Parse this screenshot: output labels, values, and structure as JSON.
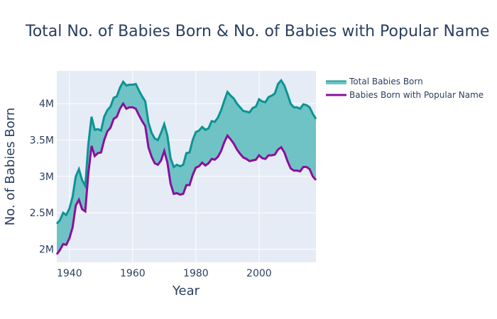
{
  "chart_data": {
    "type": "area",
    "title": "Total No. of Babies Born & No. of Babies with Popular Name",
    "xlabel": "Year",
    "ylabel": "No. of Babies Born",
    "xlim": [
      1936,
      2018
    ],
    "ylim": [
      1820000,
      4450000
    ],
    "x_ticks": [
      1940,
      1960,
      1980,
      2000
    ],
    "x_tick_labels": [
      "1940",
      "1960",
      "1980",
      "2000"
    ],
    "y_ticks": [
      2000000,
      2500000,
      3000000,
      3500000,
      4000000
    ],
    "y_tick_labels": [
      "2M",
      "2.5M",
      "3M",
      "3.5M",
      "4M"
    ],
    "grid": true,
    "legend_position": "top-right",
    "colors": {
      "plot_bg": "#e5ecf6",
      "grid": "#ffffff",
      "total_line": "#0b9494",
      "fill": "#6fc3c5",
      "popular_line": "#8b0f9c"
    },
    "x": [
      1936,
      1937,
      1938,
      1939,
      1940,
      1941,
      1942,
      1943,
      1944,
      1945,
      1946,
      1947,
      1948,
      1949,
      1950,
      1951,
      1952,
      1953,
      1954,
      1955,
      1956,
      1957,
      1958,
      1959,
      1960,
      1961,
      1962,
      1963,
      1964,
      1965,
      1966,
      1967,
      1968,
      1969,
      1970,
      1971,
      1972,
      1973,
      1974,
      1975,
      1976,
      1977,
      1978,
      1979,
      1980,
      1981,
      1982,
      1983,
      1984,
      1985,
      1986,
      1987,
      1988,
      1989,
      1990,
      1991,
      1992,
      1993,
      1994,
      1995,
      1996,
      1997,
      1998,
      1999,
      2000,
      2001,
      2002,
      2003,
      2004,
      2005,
      2006,
      2007,
      2008,
      2009,
      2010,
      2011,
      2012,
      2013,
      2014,
      2015,
      2016,
      2017,
      2018
    ],
    "series": [
      {
        "name": "Total Babies Born",
        "values": [
          2350000,
          2400000,
          2500000,
          2470000,
          2560000,
          2720000,
          3000000,
          3100000,
          2950000,
          2870000,
          3450000,
          3820000,
          3640000,
          3650000,
          3630000,
          3820000,
          3910000,
          3960000,
          4080000,
          4100000,
          4220000,
          4300000,
          4250000,
          4260000,
          4260000,
          4270000,
          4180000,
          4100000,
          4030000,
          3740000,
          3600000,
          3520000,
          3500000,
          3600000,
          3720000,
          3560000,
          3250000,
          3130000,
          3160000,
          3140000,
          3160000,
          3320000,
          3330000,
          3500000,
          3610000,
          3630000,
          3680000,
          3640000,
          3660000,
          3760000,
          3750000,
          3810000,
          3910000,
          4040000,
          4160000,
          4110000,
          4070000,
          4000000,
          3950000,
          3900000,
          3890000,
          3880000,
          3940000,
          3960000,
          4060000,
          4030000,
          4020000,
          4090000,
          4110000,
          4140000,
          4270000,
          4320000,
          4250000,
          4130000,
          4000000,
          3950000,
          3950000,
          3930000,
          3990000,
          3980000,
          3950000,
          3860000,
          3790000
        ]
      },
      {
        "name": "Babies Born with Popular Name",
        "values": [
          1930000,
          1990000,
          2070000,
          2060000,
          2150000,
          2300000,
          2600000,
          2680000,
          2550000,
          2520000,
          3050000,
          3420000,
          3280000,
          3320000,
          3330000,
          3500000,
          3620000,
          3670000,
          3790000,
          3820000,
          3930000,
          4000000,
          3930000,
          3950000,
          3950000,
          3930000,
          3840000,
          3760000,
          3690000,
          3400000,
          3270000,
          3180000,
          3160000,
          3220000,
          3350000,
          3190000,
          2900000,
          2760000,
          2770000,
          2750000,
          2760000,
          2880000,
          2880000,
          3020000,
          3120000,
          3140000,
          3190000,
          3150000,
          3180000,
          3240000,
          3230000,
          3270000,
          3350000,
          3470000,
          3560000,
          3510000,
          3450000,
          3370000,
          3310000,
          3260000,
          3240000,
          3210000,
          3220000,
          3230000,
          3290000,
          3250000,
          3240000,
          3290000,
          3290000,
          3300000,
          3370000,
          3400000,
          3330000,
          3210000,
          3110000,
          3080000,
          3080000,
          3070000,
          3130000,
          3130000,
          3100000,
          3000000,
          2950000
        ]
      }
    ]
  }
}
